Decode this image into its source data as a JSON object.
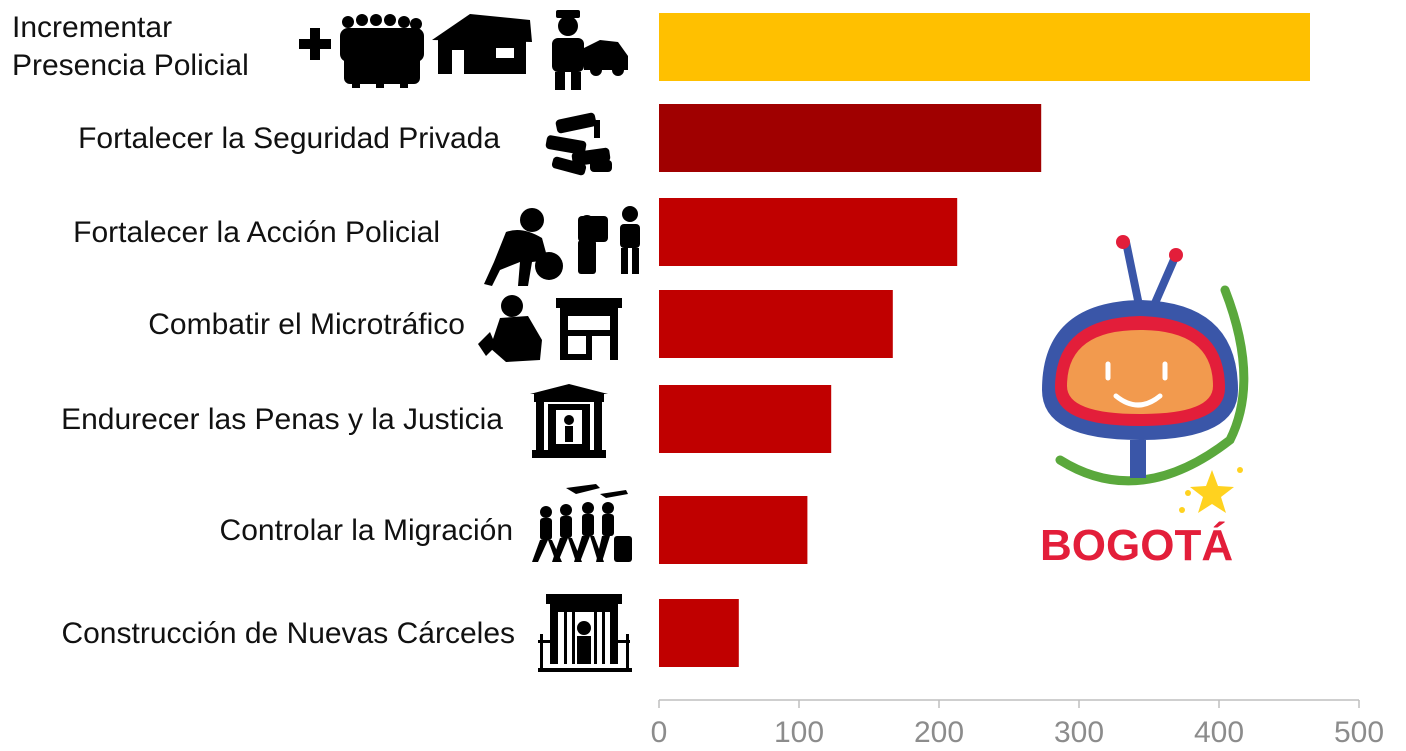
{
  "chart_data": {
    "type": "bar",
    "orientation": "horizontal",
    "categories": [
      "Incrementar Presencia Policial",
      "Fortalecer la Seguridad Privada",
      "Fortalecer la Acción Policial",
      "Combatir el Microtráfico",
      "Endurecer las Penas y la Justicia",
      "Controlar la Migración",
      "Construcción de Nuevas Cárceles"
    ],
    "category_lines": [
      [
        "Incrementar",
        "Presencia Policial"
      ],
      [
        "Fortalecer la Seguridad Privada"
      ],
      [
        "Fortalecer la Acción Policial"
      ],
      [
        "Combatir el Microtráfico"
      ],
      [
        "Endurecer las Penas y la Justicia"
      ],
      [
        "Controlar la Migración"
      ],
      [
        "Construcción de Nuevas Cárceles"
      ]
    ],
    "values": [
      465,
      273,
      213,
      167,
      123,
      106,
      57
    ],
    "bar_colors": [
      "#ffc000",
      "#a00000",
      "#c00000",
      "#c00000",
      "#c00000",
      "#c00000",
      "#c00000"
    ],
    "xlim": [
      0,
      500
    ],
    "xticks": [
      0,
      100,
      200,
      300,
      400,
      500
    ],
    "title": "",
    "xlabel": "",
    "ylabel": "",
    "grid": false,
    "category_icons": [
      [
        "plus-icon",
        "police-crowd-icon",
        "police-station-icon",
        "police-officer-car-icon"
      ],
      [
        "security-camera-icon"
      ],
      [
        "thief-icon",
        "police-stop-icon"
      ],
      [
        "drug-user-icon",
        "cannabis-shop-icon"
      ],
      [
        "courthouse-icon"
      ],
      [
        "migrants-airplane-icon"
      ],
      [
        "jail-gate-icon"
      ]
    ]
  },
  "logo": {
    "text": "BOGOTÁ",
    "colors": {
      "red": "#e31e3a",
      "blue": "#3a56a8",
      "orange": "#f29a4e",
      "green": "#5aa83c",
      "yellow": "#ffd21f"
    }
  }
}
